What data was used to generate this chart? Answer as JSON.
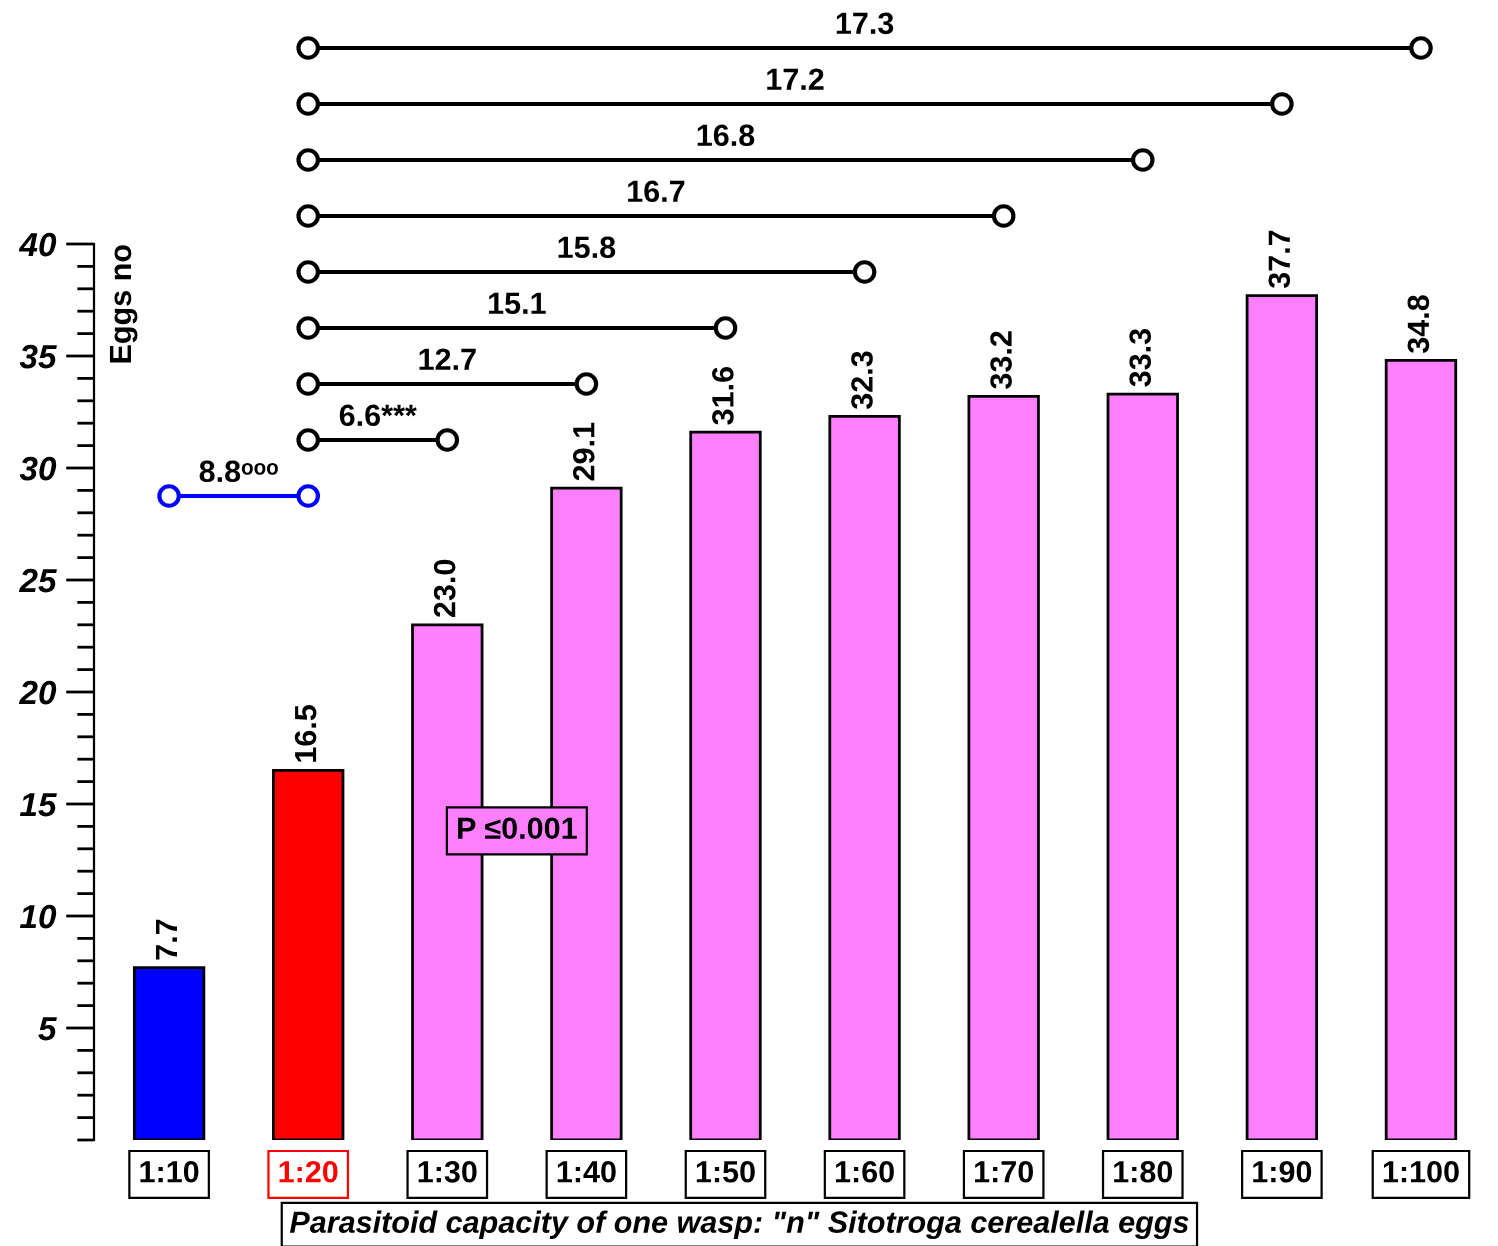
{
  "chart_data": {
    "type": "bar",
    "ylabel": "Eggs no",
    "xlabel": "Parasitoid capacity of one wasp: \"n\" Sitotroga cerealella eggs",
    "categories": [
      "1:10",
      "1:20",
      "1:30",
      "1:40",
      "1:50",
      "1:60",
      "1:70",
      "1:80",
      "1:90",
      "1:100"
    ],
    "values": [
      7.7,
      16.5,
      23.0,
      29.1,
      31.6,
      32.3,
      33.2,
      33.3,
      37.7,
      34.8
    ],
    "colors": [
      "#0000ff",
      "#ff0000",
      "#ff80ff",
      "#ff80ff",
      "#ff80ff",
      "#ff80ff",
      "#ff80ff",
      "#ff80ff",
      "#ff80ff",
      "#ff80ff"
    ],
    "value_labels": [
      "7.7",
      "16.5",
      "23.0",
      "29.1",
      "31.6",
      "32.3",
      "33.2",
      "33.3",
      "37.7",
      "34.8"
    ],
    "ylim": [
      0,
      40
    ],
    "yticks": [
      5,
      10,
      15,
      20,
      25,
      30,
      35,
      40
    ],
    "grid": false,
    "legend": false,
    "annotations": [
      "8.8ᵒᵒᵒ",
      "6.6***",
      "12.7",
      "15.1",
      "15.8",
      "16.7",
      "16.8",
      "17.2",
      "17.3",
      "P ≤0.001"
    ]
  }
}
